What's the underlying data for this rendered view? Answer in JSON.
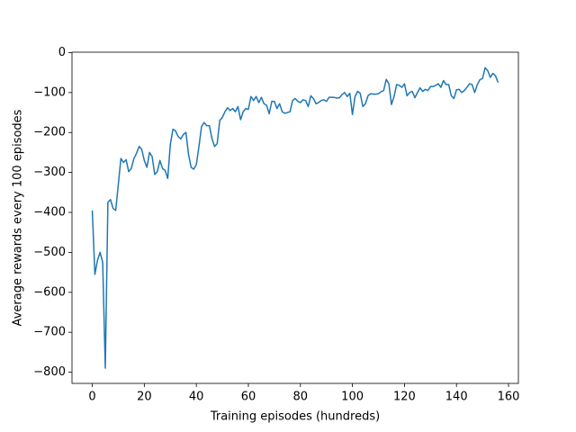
{
  "chart_data": {
    "type": "line",
    "x_label": "Training episodes (hundreds)",
    "y_label": "Average rewards every 100 episodes",
    "x": [
      0,
      1,
      2,
      3,
      4,
      5,
      6,
      7,
      8,
      9,
      10,
      11,
      12,
      13,
      14,
      15,
      16,
      17,
      18,
      19,
      20,
      21,
      22,
      23,
      24,
      25,
      26,
      27,
      28,
      29,
      30,
      31,
      32,
      33,
      34,
      35,
      36,
      37,
      38,
      39,
      40,
      41,
      42,
      43,
      44,
      45,
      46,
      47,
      48,
      49,
      50,
      51,
      52,
      53,
      54,
      55,
      56,
      57,
      58,
      59,
      60,
      61,
      62,
      63,
      64,
      65,
      66,
      67,
      68,
      69,
      70,
      71,
      72,
      73,
      74,
      75,
      76,
      77,
      78,
      79,
      80,
      81,
      82,
      83,
      84,
      85,
      86,
      87,
      88,
      89,
      90,
      91,
      92,
      93,
      94,
      95,
      96,
      97,
      98,
      99,
      100,
      101,
      102,
      103,
      104,
      105,
      106,
      107,
      108,
      109,
      110,
      111,
      112,
      113,
      114,
      115,
      116,
      117,
      118,
      119,
      120,
      121,
      122,
      123,
      124,
      125,
      126,
      127,
      128,
      129,
      130,
      131,
      132,
      133,
      134,
      135,
      136,
      137,
      138,
      139,
      140,
      141,
      142,
      143,
      144,
      145,
      146,
      147,
      148,
      149,
      150,
      151,
      152,
      153,
      154,
      155,
      156
    ],
    "series": [
      {
        "color": "#1f77b4",
        "values": [
          -395,
          -555,
          -520,
          -500,
          -525,
          -790,
          -375,
          -368,
          -390,
          -395,
          -330,
          -265,
          -275,
          -268,
          -298,
          -290,
          -265,
          -252,
          -235,
          -242,
          -270,
          -287,
          -250,
          -260,
          -305,
          -298,
          -270,
          -290,
          -295,
          -315,
          -230,
          -192,
          -196,
          -210,
          -216,
          -205,
          -200,
          -255,
          -287,
          -292,
          -280,
          -235,
          -185,
          -175,
          -183,
          -183,
          -215,
          -235,
          -228,
          -170,
          -162,
          -148,
          -138,
          -145,
          -140,
          -148,
          -135,
          -168,
          -148,
          -140,
          -142,
          -110,
          -120,
          -110,
          -125,
          -112,
          -128,
          -132,
          -153,
          -122,
          -122,
          -140,
          -128,
          -148,
          -152,
          -150,
          -148,
          -120,
          -115,
          -122,
          -125,
          -118,
          -120,
          -135,
          -108,
          -115,
          -128,
          -125,
          -120,
          -118,
          -122,
          -112,
          -112,
          -112,
          -114,
          -113,
          -105,
          -100,
          -110,
          -102,
          -155,
          -110,
          -97,
          -102,
          -135,
          -128,
          -108,
          -103,
          -104,
          -104,
          -103,
          -98,
          -95,
          -67,
          -78,
          -130,
          -110,
          -80,
          -82,
          -87,
          -78,
          -108,
          -100,
          -97,
          -113,
          -100,
          -88,
          -97,
          -92,
          -95,
          -85,
          -85,
          -82,
          -78,
          -87,
          -70,
          -80,
          -80,
          -108,
          -115,
          -93,
          -92,
          -100,
          -95,
          -87,
          -78,
          -80,
          -100,
          -80,
          -68,
          -65,
          -38,
          -45,
          -62,
          -52,
          -58,
          -75
        ]
      }
    ],
    "xlim": [
      -7.8,
      163.8
    ],
    "xticks": [
      0,
      20,
      40,
      60,
      80,
      100,
      120,
      140,
      160
    ],
    "ylim": [
      -828,
      1
    ],
    "yticks": [
      {
        "value": -800,
        "label": "−800"
      },
      {
        "value": -700,
        "label": "−700"
      },
      {
        "value": -600,
        "label": "−600"
      },
      {
        "value": -500,
        "label": "−500"
      },
      {
        "value": -400,
        "label": "−400"
      },
      {
        "value": -300,
        "label": "−300"
      },
      {
        "value": -200,
        "label": "−200"
      },
      {
        "value": -100,
        "label": "−100"
      },
      0
    ],
    "grid": false
  }
}
